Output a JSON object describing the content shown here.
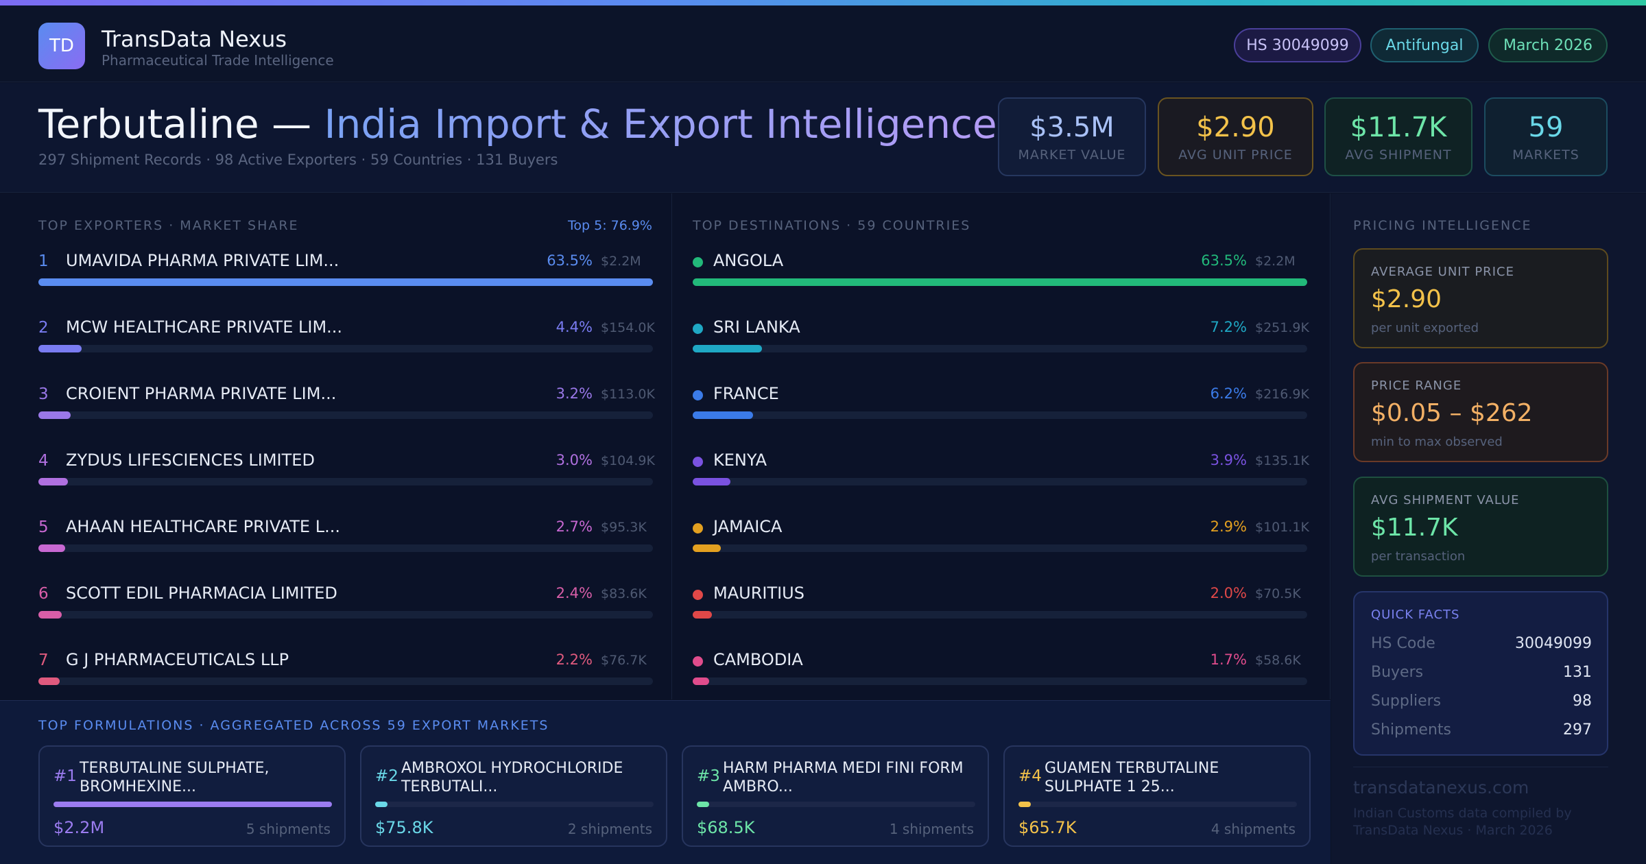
{
  "colors": {
    "accent_blue": "#5a8cf0",
    "accent_purple": "#8a6cf2",
    "gold": "#f3c24a",
    "green": "#6de5a8",
    "cyan": "#6ad8e8"
  },
  "brand": {
    "logo_text": "TD",
    "name": "TransData Nexus",
    "subtitle": "Pharmaceutical Trade Intelligence"
  },
  "pills": {
    "hs": "HS 30049099",
    "category": "Antifungal",
    "date": "March 2026"
  },
  "hero": {
    "title_part1": "Terbutaline — ",
    "title_part2": "India Import & Export Intelligence",
    "subtitle": "297 Shipment Records · 98 Active Exporters · 59 Countries · 131 Buyers"
  },
  "kpis": [
    {
      "value": "$3.5M",
      "label": "MARKET VALUE"
    },
    {
      "value": "$2.90",
      "label": "AVG UNIT PRICE"
    },
    {
      "value": "$11.7K",
      "label": "AVG SHIPMENT"
    },
    {
      "value": "59",
      "label": "MARKETS"
    }
  ],
  "exporters": {
    "title": "TOP EXPORTERS · MARKET SHARE",
    "top5": "Top 5: 76.9%",
    "items": [
      {
        "rank": "1",
        "name": "UMAVIDA PHARMA PRIVATE LIM...",
        "pct": "63.5%",
        "amount": "$2.2M",
        "share": 100,
        "color": "#5a8cf0"
      },
      {
        "rank": "2",
        "name": "MCW HEALTHCARE PRIVATE LIM...",
        "pct": "4.4%",
        "amount": "$154.0K",
        "share": 7,
        "color": "#7a7cf2"
      },
      {
        "rank": "3",
        "name": "CROIENT PHARMA PRIVATE LIM...",
        "pct": "3.2%",
        "amount": "$113.0K",
        "share": 5.2,
        "color": "#9a78e8"
      },
      {
        "rank": "4",
        "name": "ZYDUS LIFESCIENCES LIMITED",
        "pct": "3.0%",
        "amount": "$104.9K",
        "share": 4.8,
        "color": "#b070e0"
      },
      {
        "rank": "5",
        "name": "AHAAN HEALTHCARE PRIVATE L...",
        "pct": "2.7%",
        "amount": "$95.3K",
        "share": 4.3,
        "color": "#c868d2"
      },
      {
        "rank": "6",
        "name": "SCOTT EDIL PHARMACIA LIMITED",
        "pct": "2.4%",
        "amount": "$83.6K",
        "share": 3.8,
        "color": "#d85ea8"
      },
      {
        "rank": "7",
        "name": "G J PHARMACEUTICALS LLP",
        "pct": "2.2%",
        "amount": "$76.7K",
        "share": 3.5,
        "color": "#e05a7e"
      }
    ]
  },
  "destinations": {
    "title": "TOP DESTINATIONS · 59 COUNTRIES",
    "items": [
      {
        "name": "ANGOLA",
        "pct": "63.5%",
        "amount": "$2.2M",
        "share": 100,
        "color": "#22b97a"
      },
      {
        "name": "SRI LANKA",
        "pct": "7.2%",
        "amount": "$251.9K",
        "share": 11.3,
        "color": "#1fa8c4"
      },
      {
        "name": "FRANCE",
        "pct": "6.2%",
        "amount": "$216.9K",
        "share": 9.8,
        "color": "#3b7be8"
      },
      {
        "name": "KENYA",
        "pct": "3.9%",
        "amount": "$135.1K",
        "share": 6.1,
        "color": "#7a52e0"
      },
      {
        "name": "JAMAICA",
        "pct": "2.9%",
        "amount": "$101.1K",
        "share": 4.6,
        "color": "#e3a020"
      },
      {
        "name": "MAURITIUS",
        "pct": "2.0%",
        "amount": "$70.5K",
        "share": 3.1,
        "color": "#e04848"
      },
      {
        "name": "CAMBODIA",
        "pct": "1.7%",
        "amount": "$58.6K",
        "share": 2.7,
        "color": "#e04c8c"
      }
    ]
  },
  "formulations": {
    "title": "TOP FORMULATIONS · AGGREGATED ACROSS 59 EXPORT MARKETS",
    "items": [
      {
        "num": "#1",
        "name": "TERBUTALINE SULPHATE, BROMHEXINE...",
        "value": "$2.2M",
        "shipments": "5 shipments",
        "share": 100,
        "color": "#9b7cf0"
      },
      {
        "num": "#2",
        "name": "AMBROXOL HYDROCHLORIDE TERBUTALI...",
        "value": "$75.8K",
        "shipments": "2 shipments",
        "share": 3.4,
        "color": "#6ad8e8"
      },
      {
        "num": "#3",
        "name": "HARM PHARMA MEDI FINI FORM AMBRO...",
        "value": "$68.5K",
        "shipments": "1 shipments",
        "share": 3.1,
        "color": "#6de5a8"
      },
      {
        "num": "#4",
        "name": "GUAMEN TERBUTALINE SULPHATE 1 25...",
        "value": "$65.7K",
        "shipments": "4 shipments",
        "share": 3.0,
        "color": "#f3c24a"
      }
    ]
  },
  "pricing": {
    "title": "PRICING INTELLIGENCE",
    "avg_unit": {
      "label": "AVERAGE UNIT PRICE",
      "value": "$2.90",
      "sub": "per unit exported"
    },
    "range": {
      "label": "PRICE RANGE",
      "value": "$0.05 – $262",
      "sub": "min to max observed"
    },
    "avg_ship": {
      "label": "AVG SHIPMENT VALUE",
      "value": "$11.7K",
      "sub": "per transaction"
    },
    "quick_facts": {
      "title": "QUICK FACTS",
      "rows": [
        {
          "key": "HS Code",
          "value": "30049099"
        },
        {
          "key": "Buyers",
          "value": "131"
        },
        {
          "key": "Suppliers",
          "value": "98"
        },
        {
          "key": "Shipments",
          "value": "297"
        }
      ]
    },
    "footer_url": "transdatanexus.com",
    "footer_note": "Indian Customs data compiled by TransData Nexus · March 2026"
  }
}
